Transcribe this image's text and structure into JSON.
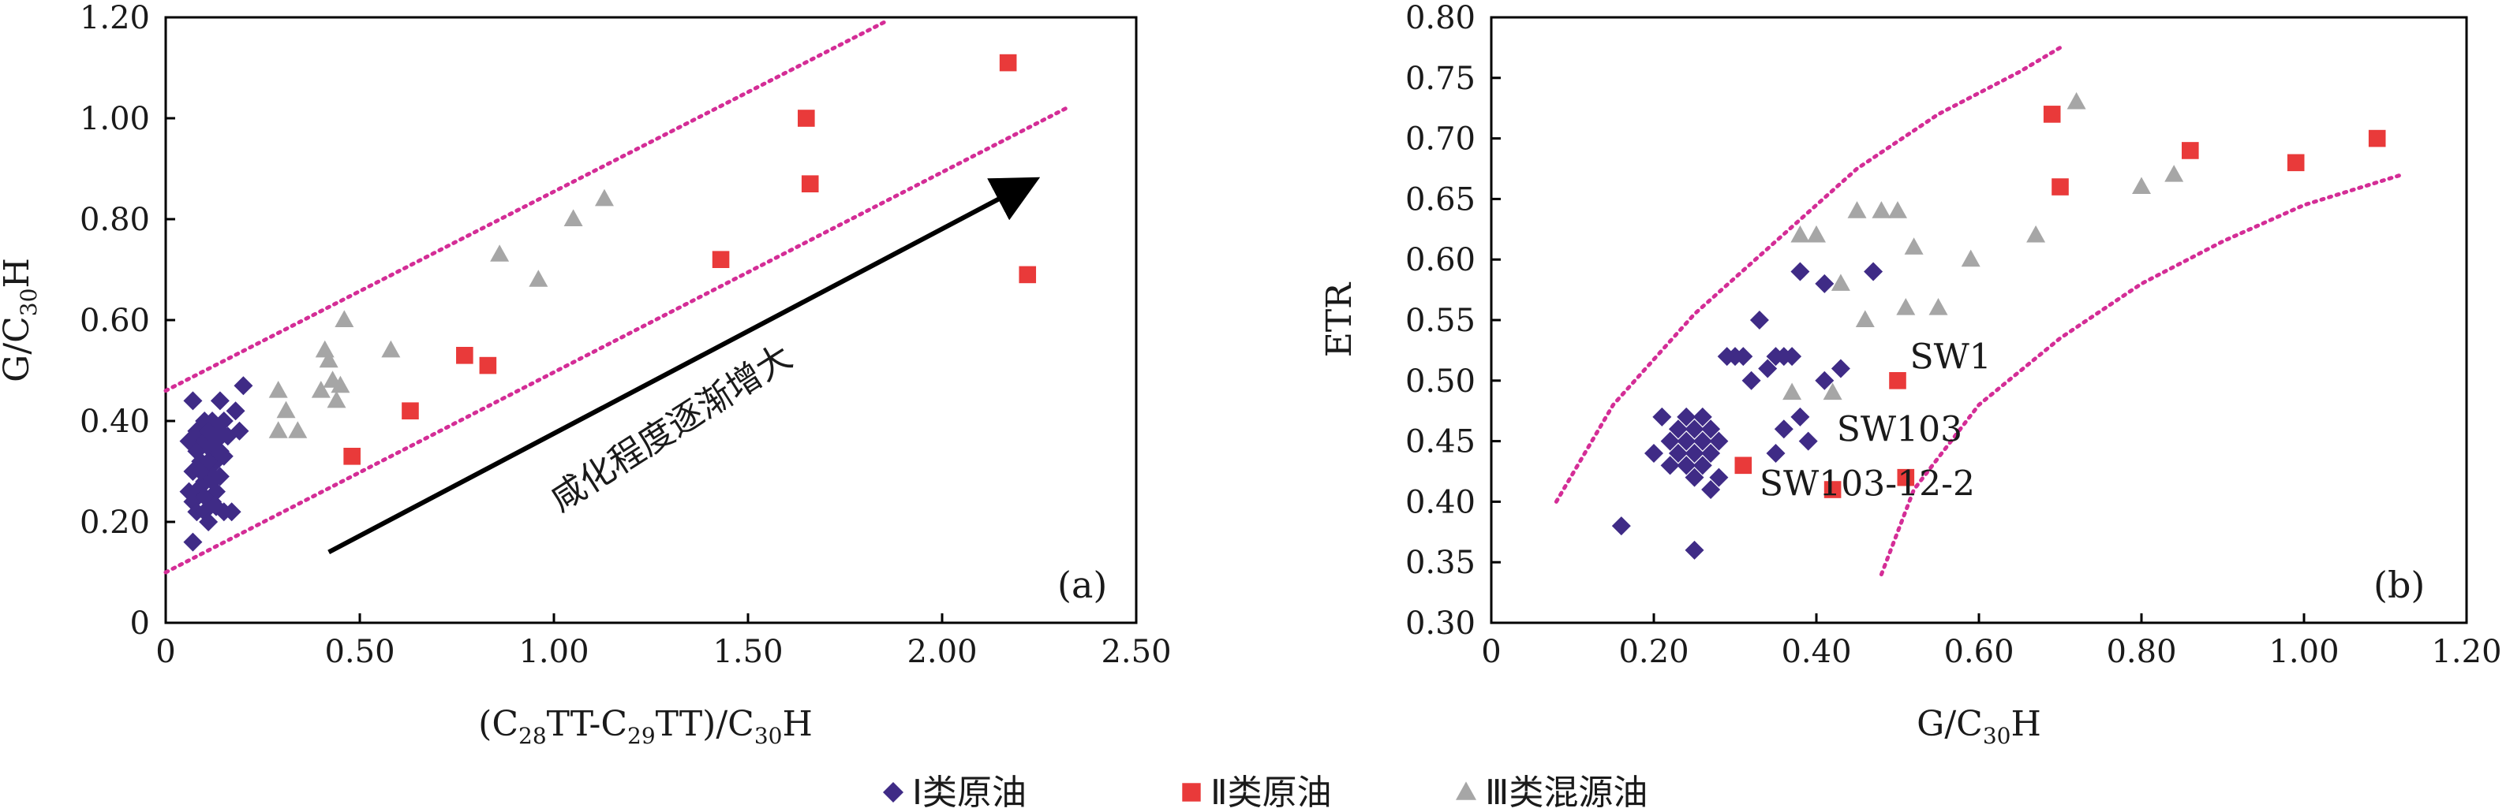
{
  "legend": {
    "items": [
      {
        "label": "Ⅰ类原油",
        "marker": "diamond",
        "color": "#3f2b86"
      },
      {
        "label": "Ⅱ类原油",
        "marker": "square",
        "color": "#e93a3a"
      },
      {
        "label": "Ⅲ类混源油",
        "marker": "triangle",
        "color": "#a6a6a6"
      }
    ]
  },
  "chart_data": [
    {
      "type": "scatter",
      "panel_label": "(a)",
      "xlim": [
        0,
        2.5
      ],
      "ylim": [
        0,
        1.2
      ],
      "x_ticks": [
        "0",
        "0.50",
        "1.00",
        "1.50",
        "2.00",
        "2.50"
      ],
      "y_ticks": [
        "0",
        "0.20",
        "0.40",
        "0.60",
        "0.80",
        "1.00",
        "1.20"
      ],
      "xlabel": {
        "main": "(C",
        "sub1": "28",
        "mid": "TT-C",
        "sub2": "29",
        "mid2": "TT)/C",
        "sub3": "30",
        "end": "H"
      },
      "ylabel": {
        "main": "G/C",
        "sub": "30",
        "end": "H"
      },
      "trend_label": "咸化程度逐渐增大",
      "bounds": [
        {
          "x": [
            0,
            1.85
          ],
          "y": [
            0.46,
            1.19
          ]
        },
        {
          "x": [
            0,
            2.32
          ],
          "y": [
            0.1,
            1.02
          ]
        }
      ],
      "trend_arrow": {
        "x": [
          0.42,
          2.22
        ],
        "y": [
          0.14,
          0.87
        ]
      },
      "series": [
        {
          "name": "Ⅰ类原油",
          "marker": "diamond",
          "color": "#3f2b86",
          "points": [
            [
              0.07,
              0.16
            ],
            [
              0.07,
              0.44
            ],
            [
              0.08,
              0.38
            ],
            [
              0.06,
              0.36
            ],
            [
              0.08,
              0.34
            ],
            [
              0.07,
              0.3
            ],
            [
              0.09,
              0.32
            ],
            [
              0.1,
              0.36
            ],
            [
              0.1,
              0.4
            ],
            [
              0.12,
              0.4
            ],
            [
              0.11,
              0.38
            ],
            [
              0.12,
              0.34
            ],
            [
              0.13,
              0.36
            ],
            [
              0.14,
              0.38
            ],
            [
              0.15,
              0.4
            ],
            [
              0.16,
              0.37
            ],
            [
              0.14,
              0.34
            ],
            [
              0.13,
              0.32
            ],
            [
              0.11,
              0.3
            ],
            [
              0.1,
              0.28
            ],
            [
              0.09,
              0.27
            ],
            [
              0.08,
              0.26
            ],
            [
              0.07,
              0.24
            ],
            [
              0.06,
              0.26
            ],
            [
              0.08,
              0.22
            ],
            [
              0.1,
              0.22
            ],
            [
              0.11,
              0.2
            ],
            [
              0.12,
              0.24
            ],
            [
              0.13,
              0.26
            ],
            [
              0.12,
              0.28
            ],
            [
              0.11,
              0.32
            ],
            [
              0.14,
              0.29
            ],
            [
              0.15,
              0.33
            ],
            [
              0.15,
              0.22
            ],
            [
              0.17,
              0.22
            ],
            [
              0.18,
              0.42
            ],
            [
              0.2,
              0.47
            ],
            [
              0.19,
              0.38
            ],
            [
              0.14,
              0.44
            ],
            [
              0.09,
              0.3
            ],
            [
              0.1,
              0.25
            ],
            [
              0.13,
              0.23
            ]
          ]
        },
        {
          "name": "Ⅱ类原油",
          "marker": "square",
          "color": "#e93a3a",
          "points": [
            [
              0.48,
              0.33
            ],
            [
              0.63,
              0.42
            ],
            [
              0.77,
              0.53
            ],
            [
              0.83,
              0.51
            ],
            [
              1.43,
              0.72
            ],
            [
              1.65,
              1.0
            ],
            [
              1.66,
              0.87
            ],
            [
              2.17,
              1.11
            ],
            [
              2.22,
              0.69
            ]
          ]
        },
        {
          "name": "Ⅲ类混源油",
          "marker": "triangle",
          "color": "#a6a6a6",
          "points": [
            [
              0.29,
              0.46
            ],
            [
              0.29,
              0.38
            ],
            [
              0.31,
              0.42
            ],
            [
              0.34,
              0.38
            ],
            [
              0.4,
              0.46
            ],
            [
              0.41,
              0.54
            ],
            [
              0.42,
              0.52
            ],
            [
              0.43,
              0.48
            ],
            [
              0.44,
              0.44
            ],
            [
              0.45,
              0.47
            ],
            [
              0.46,
              0.6
            ],
            [
              0.58,
              0.54
            ],
            [
              0.86,
              0.73
            ],
            [
              0.96,
              0.68
            ],
            [
              1.05,
              0.8
            ],
            [
              1.13,
              0.84
            ]
          ]
        }
      ]
    },
    {
      "type": "scatter",
      "panel_label": "(b)",
      "xlim": [
        0,
        1.2
      ],
      "ylim": [
        0.3,
        0.8
      ],
      "x_ticks": [
        "0",
        "0.20",
        "0.40",
        "0.60",
        "0.80",
        "1.00",
        "1.20"
      ],
      "y_ticks": [
        "0.30",
        "0.35",
        "0.40",
        "0.45",
        "0.50",
        "0.55",
        "0.60",
        "0.65",
        "0.70",
        "0.75",
        "0.80"
      ],
      "xlabel": {
        "main": "G/C",
        "sub": "30",
        "end": "H"
      },
      "ylabel": "ETR",
      "bounds": [
        {
          "x": [
            0.08,
            0.15,
            0.25,
            0.35,
            0.45,
            0.55,
            0.65,
            0.7
          ],
          "y": [
            0.4,
            0.48,
            0.555,
            0.615,
            0.675,
            0.72,
            0.755,
            0.775
          ]
        },
        {
          "x": [
            0.48,
            0.52,
            0.6,
            0.7,
            0.8,
            0.9,
            1.0,
            1.12
          ],
          "y": [
            0.34,
            0.41,
            0.48,
            0.535,
            0.58,
            0.615,
            0.645,
            0.67
          ]
        }
      ],
      "annotations": [
        {
          "text": "SW1",
          "x": 0.515,
          "y": 0.51
        },
        {
          "text": "SW103",
          "x": 0.425,
          "y": 0.45
        },
        {
          "text": "SW103-12-2",
          "x": 0.33,
          "y": 0.405
        }
      ],
      "series": [
        {
          "name": "Ⅰ类原油",
          "marker": "diamond",
          "color": "#3f2b86",
          "points": [
            [
              0.16,
              0.38
            ],
            [
              0.2,
              0.44
            ],
            [
              0.21,
              0.47
            ],
            [
              0.22,
              0.45
            ],
            [
              0.22,
              0.43
            ],
            [
              0.23,
              0.46
            ],
            [
              0.23,
              0.44
            ],
            [
              0.24,
              0.45
            ],
            [
              0.24,
              0.43
            ],
            [
              0.24,
              0.47
            ],
            [
              0.25,
              0.46
            ],
            [
              0.25,
              0.44
            ],
            [
              0.25,
              0.42
            ],
            [
              0.26,
              0.45
            ],
            [
              0.26,
              0.47
            ],
            [
              0.26,
              0.43
            ],
            [
              0.27,
              0.46
            ],
            [
              0.27,
              0.44
            ],
            [
              0.27,
              0.41
            ],
            [
              0.28,
              0.42
            ],
            [
              0.28,
              0.45
            ],
            [
              0.25,
              0.36
            ],
            [
              0.29,
              0.52
            ],
            [
              0.3,
              0.52
            ],
            [
              0.31,
              0.52
            ],
            [
              0.32,
              0.5
            ],
            [
              0.33,
              0.55
            ],
            [
              0.34,
              0.51
            ],
            [
              0.35,
              0.52
            ],
            [
              0.36,
              0.52
            ],
            [
              0.37,
              0.52
            ],
            [
              0.36,
              0.46
            ],
            [
              0.35,
              0.44
            ],
            [
              0.38,
              0.47
            ],
            [
              0.39,
              0.45
            ],
            [
              0.38,
              0.59
            ],
            [
              0.41,
              0.58
            ],
            [
              0.41,
              0.5
            ],
            [
              0.43,
              0.51
            ],
            [
              0.47,
              0.59
            ]
          ]
        },
        {
          "name": "Ⅱ类原油",
          "marker": "square",
          "color": "#e93a3a",
          "points": [
            [
              0.31,
              0.43
            ],
            [
              0.42,
              0.41
            ],
            [
              0.5,
              0.5
            ],
            [
              0.51,
              0.42
            ],
            [
              0.69,
              0.72
            ],
            [
              0.7,
              0.66
            ],
            [
              0.86,
              0.69
            ],
            [
              0.99,
              0.68
            ],
            [
              1.09,
              0.7
            ]
          ]
        },
        {
          "name": "Ⅲ类混源油",
          "marker": "triangle",
          "color": "#a6a6a6",
          "points": [
            [
              0.37,
              0.49
            ],
            [
              0.38,
              0.62
            ],
            [
              0.4,
              0.62
            ],
            [
              0.42,
              0.49
            ],
            [
              0.43,
              0.58
            ],
            [
              0.45,
              0.64
            ],
            [
              0.46,
              0.55
            ],
            [
              0.48,
              0.64
            ],
            [
              0.5,
              0.64
            ],
            [
              0.51,
              0.56
            ],
            [
              0.52,
              0.61
            ],
            [
              0.55,
              0.56
            ],
            [
              0.59,
              0.6
            ],
            [
              0.67,
              0.62
            ],
            [
              0.72,
              0.73
            ],
            [
              0.8,
              0.66
            ],
            [
              0.84,
              0.67
            ]
          ]
        }
      ]
    }
  ]
}
